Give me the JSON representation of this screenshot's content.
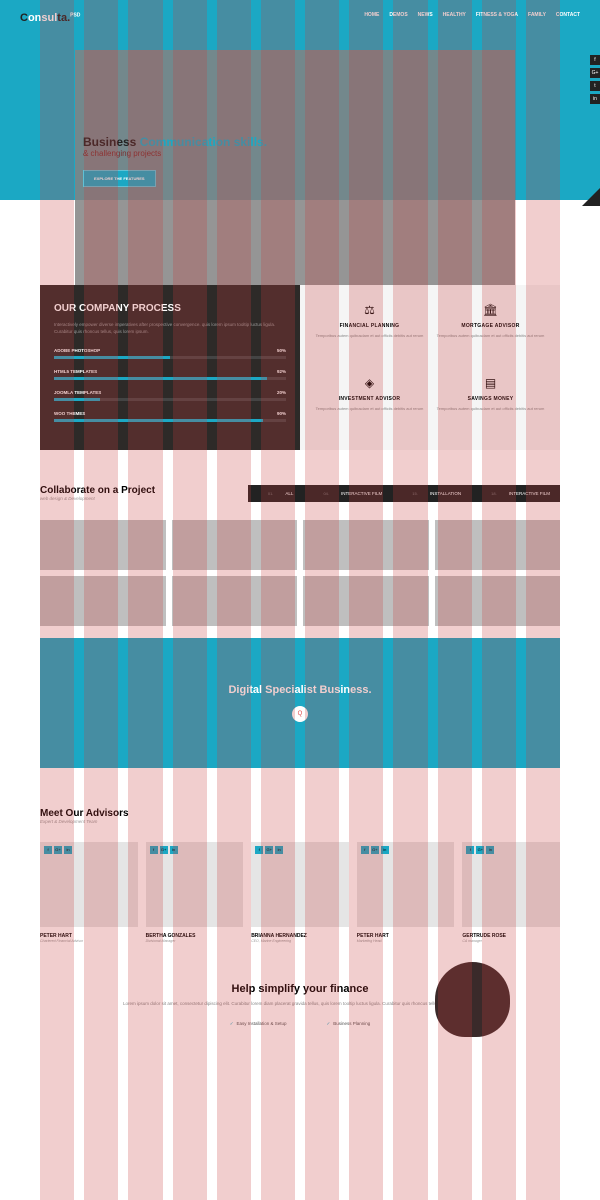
{
  "colors": {
    "teal": "#1ba8c4",
    "dark": "#2d2a28"
  },
  "logo": {
    "pre": "C",
    "mid": "onsul",
    "post": "ta.",
    "sup": "PSD"
  },
  "nav": [
    "HOME",
    "DEMOS",
    "NEWS",
    "HEALTHY",
    "FITNESS & YOGA",
    "FAMILY",
    "CONTACT"
  ],
  "social": [
    "f",
    "G+",
    "t",
    "in"
  ],
  "hero": {
    "l1a": "Business ",
    "l1b": "Communication skills.",
    "l2": "& challenging projects",
    "btn": "EXPLORE THE FEATURES"
  },
  "process": {
    "title": "OUR COMPANY PROCESS",
    "desc": "Interactively empower diverse imperatives after prospective convergence. quis lorem ipsum tooltip luctus ligula. Curabitur quis rhoncus tellus, quis lorem ipsum.",
    "skills": [
      {
        "name": "ADOBE PHOTOSHOP",
        "pct": 50
      },
      {
        "name": "HTML5 TEMPLATES",
        "pct": 92
      },
      {
        "name": "JOOMLA TEMPLATES",
        "pct": 20
      },
      {
        "name": "WOO THEMES",
        "pct": 90
      }
    ],
    "services": [
      {
        "icon": "⚖",
        "title": "FINANCIAL PLANNING",
        "desc": "Temporibus autem quibusdam et aut officiis debitis aut rerum"
      },
      {
        "icon": "🏛",
        "title": "MORTGAGE ADVISOR",
        "desc": "Temporibus autem quibusdam et aut officiis debitis aut rerum"
      },
      {
        "icon": "◈",
        "title": "INVESTMENT ADVISOR",
        "desc": "Temporibus autem quibusdam et aut officiis debitis aut rerum"
      },
      {
        "icon": "▤",
        "title": "SAVINGS MONEY",
        "desc": "Temporibus autem quibusdam et aut officiis debitis aut rerum"
      }
    ]
  },
  "collab": {
    "title": "Collaborate on a Project",
    "sub": "web design & Development",
    "filters": [
      {
        "n": "01.",
        "t": "ALL"
      },
      {
        "n": "04.",
        "t": "INTERACTIVE FILM"
      },
      {
        "n": "15.",
        "t": "INSTALLATION"
      },
      {
        "n": "18.",
        "t": "INTERACTIVE FILM"
      }
    ]
  },
  "banner": {
    "title": "Digital Specialist Business.",
    "icon": "Q"
  },
  "team": {
    "title": "Meet Our Advisors",
    "sub": "Expert & Development Team",
    "members": [
      {
        "name": "PETER HART",
        "role": "Chartered Financial Advisor"
      },
      {
        "name": "BERTHA GONZALES",
        "role": "Divisional Manager"
      },
      {
        "name": "BRIANNA HERNANDEZ",
        "role": "CEO, Marine Engineering"
      },
      {
        "name": "PETER HART",
        "role": "Marketing Head."
      },
      {
        "name": "GERTRUDE ROSE",
        "role": "CA manager"
      }
    ],
    "soc": [
      "f",
      "G+",
      "in"
    ]
  },
  "finance": {
    "title": "Help simplify your finance",
    "desc": "Lorem ipsum dolor sit amet, consectetur dipiscing elit. Curabitur lorem diam placerat gravida tellus, quis lorem tooltip luctus ligula. Curabitur quis rhoncus tellus, quis lorem ipsum.",
    "checks": [
      "Easy Installation & Setup",
      "Business Planning"
    ]
  }
}
